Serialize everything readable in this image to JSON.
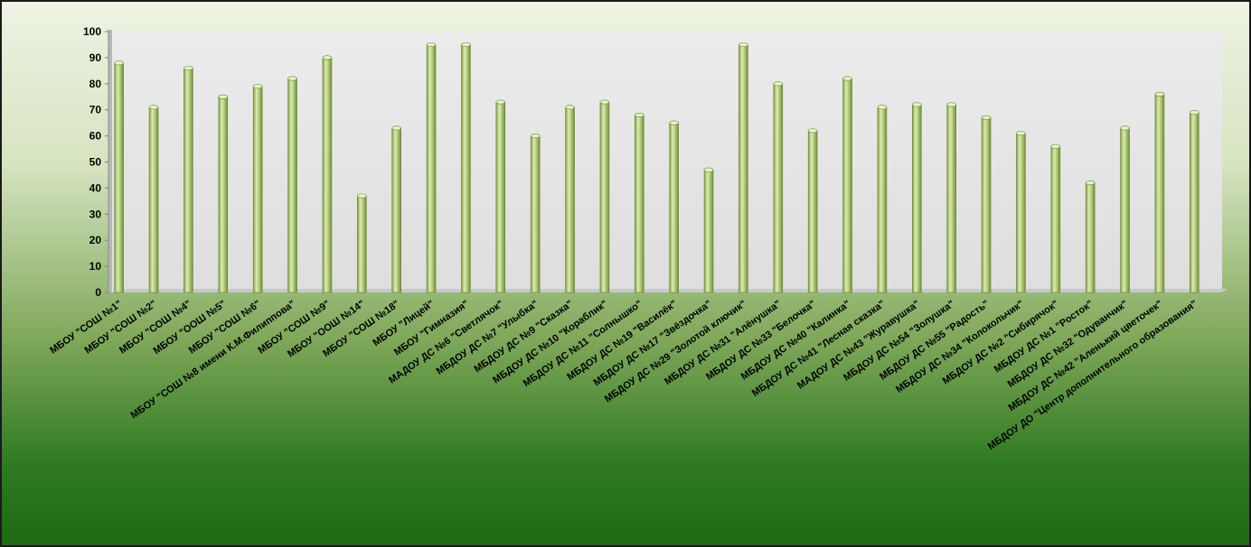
{
  "chart_data": {
    "type": "bar",
    "title": "",
    "xlabel": "",
    "ylabel": "",
    "ylim": [
      0,
      100
    ],
    "yticks": [
      "0",
      "10",
      "20",
      "30",
      "40",
      "50",
      "60",
      "70",
      "80",
      "90",
      "100"
    ],
    "grid": false,
    "legend": "none",
    "bar_color": "#b7d07e",
    "categories": [
      "МБОУ \"СОШ №1\"",
      "МБОУ \"СОШ №2\"",
      "МБОУ \"СОШ №4\"",
      "МБОУ \"ООШ №5\"",
      "МБОУ \"СОШ №6\"",
      "МБОУ \"СОШ №8 имени К.М.Филиппова\"",
      "МБОУ \"СОШ №9\"",
      "МБОУ \"ООШ №14\"",
      "МБОУ \"СОШ №18\"",
      "МБОУ \"Лицей\"",
      "МБОУ \"Гимназия\"",
      "МАДОУ ДС №6 \"Светлячок\"",
      "МБДОУ ДС №7 \"Улыбка\"",
      "МБДОУ ДС №9 \"Сказка\"",
      "МБДОУ ДС №10 \"Кораблик\"",
      "МБДОУ ДС №11 \"Солнышко\"",
      "МБДОУ ДС №19 \"Василёк\"",
      "МБДОУ ДС №17 \"Звёздочка\"",
      "МБДОУ ДС №29 \"Золотой ключик\"",
      "МБДОУ ДС №31 \"Алёнушка\"",
      "МБДОУ ДС №33 \"Белочка\"",
      "МБДОУ ДС №40 \"Калинка\"",
      "МБДОУ ДС №41 \"Лесная сказка\"",
      "МАДОУ ДС №43 \"Журавушка\"",
      "МБДОУ ДС №54 \"Золушка\"",
      "МБДОУ ДС №55 \"Радость\"",
      "МБДОУ ДС №34 \"Колокольчик\"",
      "МБДОУ ДС №2 \"Сибирячок\"",
      "МБДОУ ДС №1 \"Росток\"",
      "МБДОУ ДС №32 \"Одуванчик\"",
      "МБДОУ ДС №42 \"Аленький цветочек\"",
      "МБДОУ ДО \"Центр дополнительного образования\""
    ],
    "values": [
      88,
      71,
      86,
      75,
      79,
      82,
      90,
      37,
      63,
      95,
      95,
      73,
      60,
      71,
      73,
      68,
      65,
      47,
      95,
      80,
      62,
      82,
      71,
      72,
      72,
      67,
      61,
      56,
      42,
      63,
      76,
      69
    ]
  }
}
